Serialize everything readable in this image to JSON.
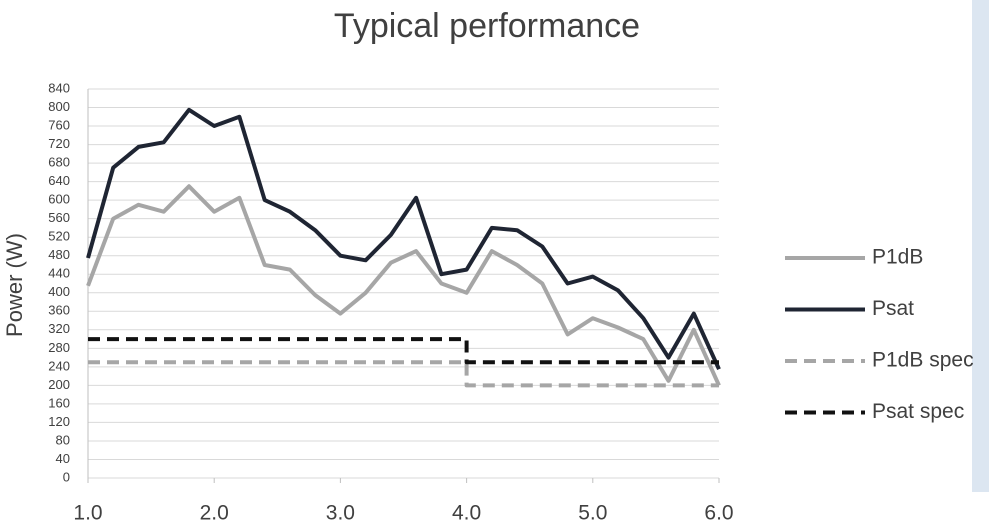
{
  "chart_data": {
    "type": "line",
    "title": "Typical performance",
    "y_label": "Power (W)",
    "xlim": [
      1,
      6
    ],
    "xticks": [
      {
        "value": 1,
        "label": "1.0"
      },
      {
        "value": 2,
        "label": "2.0"
      },
      {
        "value": 3,
        "label": "3.0"
      },
      {
        "value": 4,
        "label": "4.0"
      },
      {
        "value": 5,
        "label": "5.0"
      },
      {
        "value": 6,
        "label": "6.0"
      }
    ],
    "ylim": [
      0,
      840
    ],
    "yticks": [
      0,
      40,
      80,
      120,
      160,
      200,
      240,
      280,
      320,
      360,
      400,
      440,
      480,
      520,
      560,
      600,
      640,
      680,
      720,
      760,
      800,
      840
    ],
    "grid": true,
    "legend": "right",
    "series": [
      {
        "name": "P1dB",
        "color": "#a6a6a6",
        "dashed": false,
        "x": [
          1.0,
          1.2,
          1.4,
          1.6,
          1.8,
          2.0,
          2.2,
          2.4,
          2.6,
          2.8,
          3.0,
          3.2,
          3.4,
          3.6,
          3.8,
          4.0,
          4.2,
          4.4,
          4.6,
          4.8,
          5.0,
          5.2,
          5.4,
          5.6,
          5.8,
          6.0
        ],
        "values": [
          415,
          560,
          590,
          575,
          630,
          575,
          605,
          460,
          450,
          395,
          355,
          400,
          465,
          490,
          420,
          400,
          490,
          460,
          420,
          310,
          345,
          325,
          300,
          210,
          320,
          200
        ]
      },
      {
        "name": "Psat",
        "color": "#1f2533",
        "dashed": false,
        "x": [
          1.0,
          1.2,
          1.4,
          1.6,
          1.8,
          2.0,
          2.2,
          2.4,
          2.6,
          2.8,
          3.0,
          3.2,
          3.4,
          3.6,
          3.8,
          4.0,
          4.2,
          4.4,
          4.6,
          4.8,
          5.0,
          5.2,
          5.4,
          5.6,
          5.8,
          6.0
        ],
        "values": [
          475,
          670,
          715,
          725,
          795,
          760,
          780,
          600,
          575,
          535,
          480,
          470,
          525,
          605,
          440,
          450,
          540,
          535,
          500,
          420,
          435,
          405,
          345,
          260,
          355,
          235
        ]
      },
      {
        "name": "P1dB spec",
        "color": "#a6a6a6",
        "dashed": true,
        "x": [
          1,
          4,
          4,
          6
        ],
        "values": [
          250,
          250,
          200,
          200
        ]
      },
      {
        "name": "Psat spec",
        "color": "#111111",
        "dashed": true,
        "x": [
          1,
          4,
          4,
          6
        ],
        "values": [
          300,
          300,
          250,
          250
        ]
      }
    ]
  }
}
